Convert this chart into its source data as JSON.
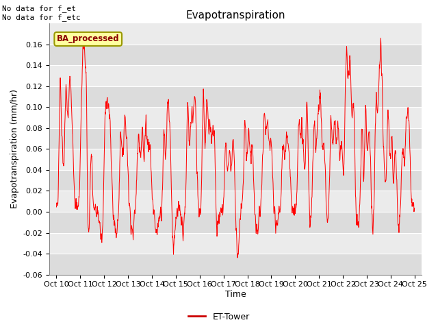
{
  "title": "Evapotranspiration",
  "ylabel": "Evapotranspiration (mm/hr)",
  "xlabel": "Time",
  "top_left_text": "No data for f_et\nNo data for f_etc",
  "legend_label": "ET-Tower",
  "legend_box_label": "BA_processed",
  "ylim": [
    -0.06,
    0.18
  ],
  "yticks": [
    -0.06,
    -0.04,
    -0.02,
    0.0,
    0.02,
    0.04,
    0.06,
    0.08,
    0.1,
    0.12,
    0.14,
    0.16
  ],
  "xtick_labels": [
    "Oct 10",
    "Oct 11",
    "Oct 12",
    "Oct 13",
    "Oct 14",
    "Oct 15",
    "Oct 16",
    "Oct 17",
    "Oct 18",
    "Oct 19",
    "Oct 20",
    "Oct 21",
    "Oct 22",
    "Oct 23",
    "Oct 24",
    "Oct 25"
  ],
  "line_color": "#FF0000",
  "band_color1": "#EBEBEB",
  "band_color2": "#DCDCDC",
  "legend_line_color": "#CC0000",
  "title_fontsize": 11,
  "label_fontsize": 9,
  "tick_fontsize": 8,
  "n_points": 1500,
  "seed": 7
}
